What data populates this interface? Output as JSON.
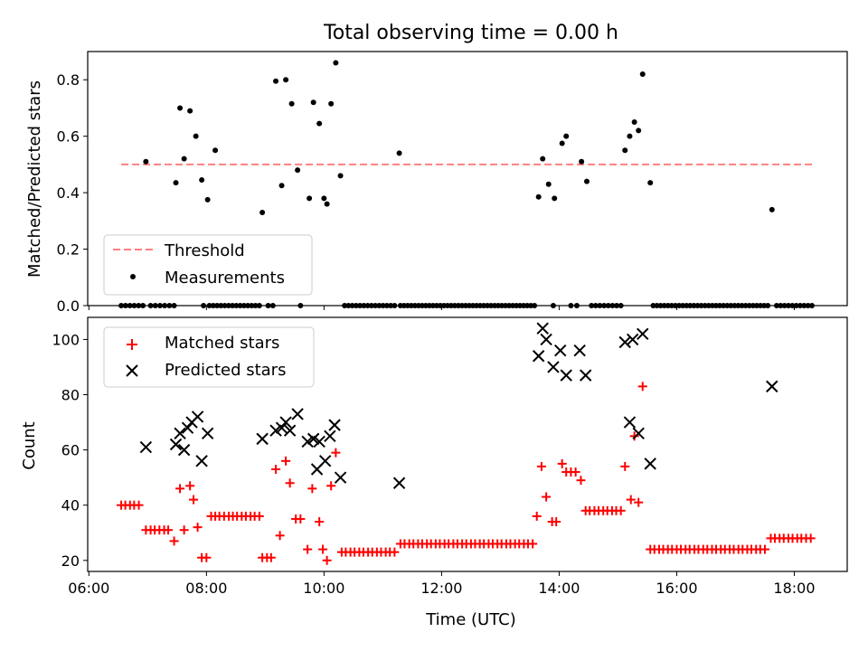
{
  "figure": {
    "title": "Total observing time = 0.00 h",
    "xlabel": "Time (UTC)"
  },
  "chart_data": [
    {
      "type": "scatter",
      "ylabel": "Matched/Predicted stars",
      "xlim": [
        5.98,
        18.9
      ],
      "ylim": [
        0,
        0.9
      ],
      "yticks": [
        0.0,
        0.2,
        0.4,
        0.6,
        0.8
      ],
      "ytick_labels": [
        "0.0",
        "0.2",
        "0.4",
        "0.6",
        "0.8"
      ],
      "legend": {
        "placement": "lower-left",
        "entries": [
          "Threshold",
          "Measurements"
        ]
      },
      "threshold": {
        "name": "Threshold",
        "value": 0.5,
        "x": [
          6.55,
          18.3
        ],
        "color": "#ff7f7f",
        "style": "dashed"
      },
      "series": [
        {
          "name": "Measurements",
          "color": "#000000",
          "marker": "dot",
          "x": [
            6.97,
            7.48,
            7.55,
            7.62,
            7.72,
            7.82,
            7.92,
            8.02,
            8.15,
            8.95,
            9.18,
            9.28,
            9.35,
            9.45,
            9.55,
            9.75,
            9.82,
            9.92,
            10.0,
            10.05,
            10.12,
            10.2,
            10.28,
            11.28,
            13.65,
            13.72,
            13.82,
            13.92,
            14.05,
            14.12,
            14.38,
            14.47,
            15.12,
            15.2,
            15.28,
            15.35,
            15.42,
            15.55,
            17.62
          ],
          "y": [
            0.51,
            0.435,
            0.7,
            0.52,
            0.69,
            0.6,
            0.445,
            0.375,
            0.55,
            0.33,
            0.795,
            0.425,
            0.8,
            0.715,
            0.48,
            0.38,
            0.72,
            0.645,
            0.38,
            0.36,
            0.715,
            0.86,
            0.46,
            0.54,
            0.385,
            0.52,
            0.43,
            0.38,
            0.575,
            0.6,
            0.51,
            0.44,
            0.55,
            0.6,
            0.65,
            0.62,
            0.82,
            0.435,
            0.34
          ]
        },
        {
          "name": "Measurements",
          "color": "#000000",
          "marker": "dot",
          "segments": [
            [
              6.55,
              6.92,
              6
            ],
            [
              7.05,
              7.45,
              6
            ],
            [
              7.95,
              7.95,
              1
            ],
            [
              8.05,
              8.9,
              14
            ],
            [
              9.05,
              9.13,
              2
            ],
            [
              9.6,
              9.6,
              1
            ],
            [
              10.35,
              11.2,
              14
            ],
            [
              11.3,
              13.58,
              38
            ],
            [
              13.9,
              13.9,
              1
            ],
            [
              14.2,
              14.3,
              2
            ],
            [
              14.55,
              15.05,
              8
            ],
            [
              15.6,
              17.55,
              32
            ],
            [
              17.7,
              18.3,
              10
            ]
          ],
          "value": 0
        }
      ]
    },
    {
      "type": "scatter",
      "ylabel": "Count",
      "xlim": [
        5.98,
        18.9
      ],
      "ylim": [
        16,
        108
      ],
      "yticks": [
        20,
        40,
        60,
        80,
        100
      ],
      "ytick_labels": [
        "20",
        "40",
        "60",
        "80",
        "100"
      ],
      "xticks": [
        6,
        8,
        10,
        12,
        14,
        16,
        18
      ],
      "xtick_labels": [
        "06:00",
        "08:00",
        "10:00",
        "12:00",
        "14:00",
        "16:00",
        "18:00"
      ],
      "legend": {
        "placement": "top-left",
        "entries": [
          "Matched stars",
          "Predicted stars"
        ]
      },
      "series": [
        {
          "name": "Matched stars",
          "color": "#ff0000",
          "marker": "plus",
          "points": [
            [
              6.55,
              40
            ],
            [
              6.62,
              40
            ],
            [
              6.7,
              40
            ],
            [
              6.77,
              40
            ],
            [
              6.85,
              40
            ],
            [
              6.97,
              31
            ],
            [
              7.05,
              31
            ],
            [
              7.12,
              31
            ],
            [
              7.2,
              31
            ],
            [
              7.28,
              31
            ],
            [
              7.35,
              31
            ],
            [
              7.45,
              27
            ],
            [
              7.55,
              46
            ],
            [
              7.62,
              31
            ],
            [
              7.72,
              47
            ],
            [
              7.78,
              42
            ],
            [
              7.85,
              32
            ],
            [
              7.92,
              21
            ],
            [
              8.0,
              21
            ],
            [
              8.08,
              36
            ],
            [
              8.15,
              36
            ],
            [
              8.22,
              36
            ],
            [
              8.3,
              36
            ],
            [
              8.38,
              36
            ],
            [
              8.45,
              36
            ],
            [
              8.52,
              36
            ],
            [
              8.6,
              36
            ],
            [
              8.67,
              36
            ],
            [
              8.75,
              36
            ],
            [
              8.82,
              36
            ],
            [
              8.9,
              36
            ],
            [
              8.95,
              21
            ],
            [
              9.03,
              21
            ],
            [
              9.1,
              21
            ],
            [
              9.18,
              53
            ],
            [
              9.25,
              29
            ],
            [
              9.35,
              56
            ],
            [
              9.42,
              48
            ],
            [
              9.52,
              35
            ],
            [
              9.6,
              35
            ],
            [
              9.72,
              24
            ],
            [
              9.8,
              46
            ],
            [
              9.92,
              34
            ],
            [
              9.98,
              24
            ],
            [
              10.05,
              20
            ],
            [
              10.12,
              47
            ],
            [
              10.2,
              59
            ],
            [
              10.3,
              23
            ],
            [
              10.37,
              23
            ],
            [
              10.45,
              23
            ],
            [
              10.52,
              23
            ],
            [
              10.6,
              23
            ],
            [
              10.67,
              23
            ],
            [
              10.75,
              23
            ],
            [
              10.82,
              23
            ],
            [
              10.9,
              23
            ],
            [
              10.97,
              23
            ],
            [
              11.05,
              23
            ],
            [
              11.12,
              23
            ],
            [
              11.2,
              23
            ],
            [
              11.3,
              26
            ],
            [
              11.37,
              26
            ],
            [
              11.45,
              26
            ],
            [
              11.52,
              26
            ],
            [
              11.6,
              26
            ],
            [
              11.67,
              26
            ],
            [
              11.75,
              26
            ],
            [
              11.82,
              26
            ],
            [
              11.9,
              26
            ],
            [
              11.97,
              26
            ],
            [
              12.05,
              26
            ],
            [
              12.12,
              26
            ],
            [
              12.2,
              26
            ],
            [
              12.27,
              26
            ],
            [
              12.35,
              26
            ],
            [
              12.42,
              26
            ],
            [
              12.5,
              26
            ],
            [
              12.57,
              26
            ],
            [
              12.65,
              26
            ],
            [
              12.72,
              26
            ],
            [
              12.8,
              26
            ],
            [
              12.87,
              26
            ],
            [
              12.95,
              26
            ],
            [
              13.02,
              26
            ],
            [
              13.1,
              26
            ],
            [
              13.17,
              26
            ],
            [
              13.25,
              26
            ],
            [
              13.32,
              26
            ],
            [
              13.4,
              26
            ],
            [
              13.47,
              26
            ],
            [
              13.55,
              26
            ],
            [
              13.62,
              36
            ],
            [
              13.7,
              54
            ],
            [
              13.78,
              43
            ],
            [
              13.88,
              34
            ],
            [
              13.95,
              34
            ],
            [
              14.05,
              55
            ],
            [
              14.12,
              52
            ],
            [
              14.2,
              52
            ],
            [
              14.28,
              52
            ],
            [
              14.37,
              49
            ],
            [
              14.45,
              38
            ],
            [
              14.52,
              38
            ],
            [
              14.6,
              38
            ],
            [
              14.67,
              38
            ],
            [
              14.75,
              38
            ],
            [
              14.82,
              38
            ],
            [
              14.9,
              38
            ],
            [
              14.97,
              38
            ],
            [
              15.05,
              38
            ],
            [
              15.12,
              54
            ],
            [
              15.22,
              42
            ],
            [
              15.28,
              65
            ],
            [
              15.35,
              41
            ],
            [
              15.42,
              83
            ],
            [
              15.55,
              24
            ],
            [
              15.62,
              24
            ],
            [
              15.7,
              24
            ],
            [
              15.77,
              24
            ],
            [
              15.85,
              24
            ],
            [
              15.92,
              24
            ],
            [
              16.0,
              24
            ],
            [
              16.07,
              24
            ],
            [
              16.15,
              24
            ],
            [
              16.22,
              24
            ],
            [
              16.3,
              24
            ],
            [
              16.37,
              24
            ],
            [
              16.45,
              24
            ],
            [
              16.52,
              24
            ],
            [
              16.6,
              24
            ],
            [
              16.67,
              24
            ],
            [
              16.75,
              24
            ],
            [
              16.82,
              24
            ],
            [
              16.9,
              24
            ],
            [
              16.97,
              24
            ],
            [
              17.05,
              24
            ],
            [
              17.12,
              24
            ],
            [
              17.2,
              24
            ],
            [
              17.27,
              24
            ],
            [
              17.35,
              24
            ],
            [
              17.42,
              24
            ],
            [
              17.5,
              24
            ],
            [
              17.6,
              28
            ],
            [
              17.67,
              28
            ],
            [
              17.75,
              28
            ],
            [
              17.82,
              28
            ],
            [
              17.9,
              28
            ],
            [
              17.97,
              28
            ],
            [
              18.05,
              28
            ],
            [
              18.12,
              28
            ],
            [
              18.2,
              28
            ],
            [
              18.28,
              28
            ]
          ]
        },
        {
          "name": "Predicted stars",
          "color": "#000000",
          "marker": "x",
          "points": [
            [
              6.97,
              61
            ],
            [
              7.48,
              62
            ],
            [
              7.55,
              66
            ],
            [
              7.62,
              60
            ],
            [
              7.68,
              68
            ],
            [
              7.75,
              70
            ],
            [
              7.85,
              72
            ],
            [
              7.92,
              56
            ],
            [
              8.02,
              66
            ],
            [
              8.95,
              64
            ],
            [
              9.18,
              67
            ],
            [
              9.28,
              68
            ],
            [
              9.35,
              70
            ],
            [
              9.42,
              67
            ],
            [
              9.55,
              73
            ],
            [
              9.72,
              63
            ],
            [
              9.82,
              64
            ],
            [
              9.88,
              53
            ],
            [
              9.92,
              63
            ],
            [
              10.02,
              56
            ],
            [
              10.1,
              65
            ],
            [
              10.18,
              69
            ],
            [
              10.28,
              50
            ],
            [
              11.28,
              48
            ],
            [
              13.65,
              94
            ],
            [
              13.72,
              104
            ],
            [
              13.78,
              100
            ],
            [
              13.9,
              90
            ],
            [
              14.02,
              96
            ],
            [
              14.12,
              87
            ],
            [
              14.35,
              96
            ],
            [
              14.45,
              87
            ],
            [
              15.12,
              99
            ],
            [
              15.2,
              70
            ],
            [
              15.25,
              100
            ],
            [
              15.35,
              66
            ],
            [
              15.42,
              102
            ],
            [
              15.55,
              55
            ],
            [
              17.62,
              83
            ]
          ]
        }
      ]
    }
  ]
}
